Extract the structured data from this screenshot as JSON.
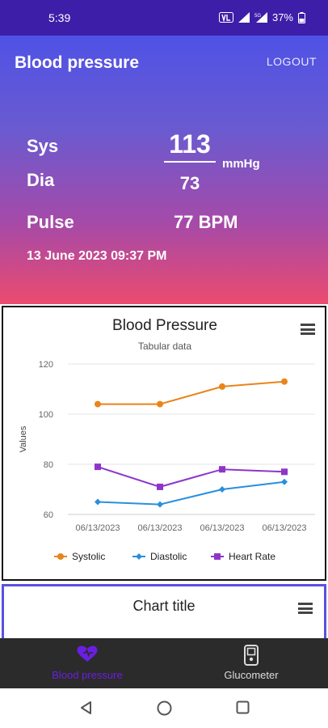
{
  "status_bar": {
    "time": "5:39",
    "battery": "37%"
  },
  "header": {
    "title": "Blood pressure",
    "logout_label": "LOGOUT"
  },
  "reading": {
    "sys_label": "Sys",
    "sys_value": "113",
    "unit": "mmHg",
    "dia_label": "Dia",
    "dia_value": "73",
    "pulse_label": "Pulse",
    "pulse_value": "77 BPM",
    "datetime": "13 June 2023 09:37 PM"
  },
  "chart_data": {
    "type": "line",
    "title": "Blood Pressure",
    "subtitle": "Tabular data",
    "xlabel": "",
    "ylabel": "Values",
    "categories": [
      "06/13/2023",
      "06/13/2023",
      "06/13/2023",
      "06/13/2023"
    ],
    "ylim": [
      60,
      120
    ],
    "yticks": [
      60,
      80,
      100,
      120
    ],
    "grid": true,
    "legend_position": "bottom",
    "series": [
      {
        "name": "Systolic",
        "values": [
          104,
          104,
          111,
          113
        ],
        "color": "#e8851a",
        "marker": "circle"
      },
      {
        "name": "Diastolic",
        "values": [
          65,
          64,
          70,
          73
        ],
        "color": "#2a8fdc",
        "marker": "diamond"
      },
      {
        "name": "Heart Rate",
        "values": [
          79,
          71,
          78,
          77
        ],
        "color": "#8e35c9",
        "marker": "square"
      }
    ]
  },
  "chart2": {
    "title": "Chart title"
  },
  "bottom_nav": {
    "items": [
      {
        "label": "Blood pressure",
        "icon": "heart-pulse-icon",
        "active": true
      },
      {
        "label": "Glucometer",
        "icon": "glucometer-icon",
        "active": false
      }
    ]
  },
  "colors": {
    "accent": "#6a1fe0",
    "hero_top": "#4f52e6",
    "hero_bottom": "#ec4b6e",
    "status_bar": "#3d1ea8"
  }
}
